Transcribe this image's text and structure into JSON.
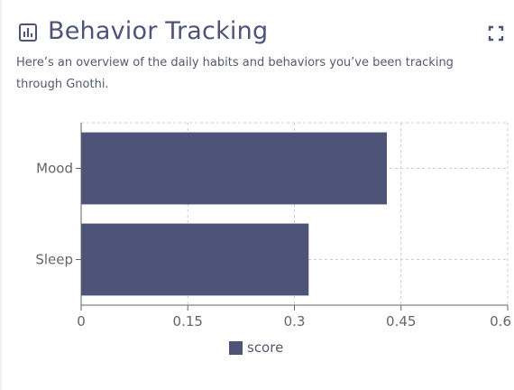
{
  "header": {
    "title": "Behavior Tracking",
    "description": "Here’s an overview of the daily habits and behaviors you’ve been tracking through Gnothi.",
    "icon": "bar-chart-icon",
    "action_icon": "expand-icon"
  },
  "chart_data": {
    "type": "bar",
    "orientation": "horizontal",
    "categories": [
      "Mood",
      "Sleep"
    ],
    "series": [
      {
        "name": "score",
        "values": [
          0.43,
          0.32
        ]
      }
    ],
    "xlim": [
      0,
      0.6
    ],
    "xticks": [
      "0",
      "0.15",
      "0.3",
      "0.45",
      "0.6"
    ],
    "xtick_values": [
      0,
      0.15,
      0.3,
      0.45,
      0.6
    ],
    "grid": true,
    "legend": "bottom-center",
    "color": "#4e5478"
  },
  "legend": {
    "label": "score"
  }
}
